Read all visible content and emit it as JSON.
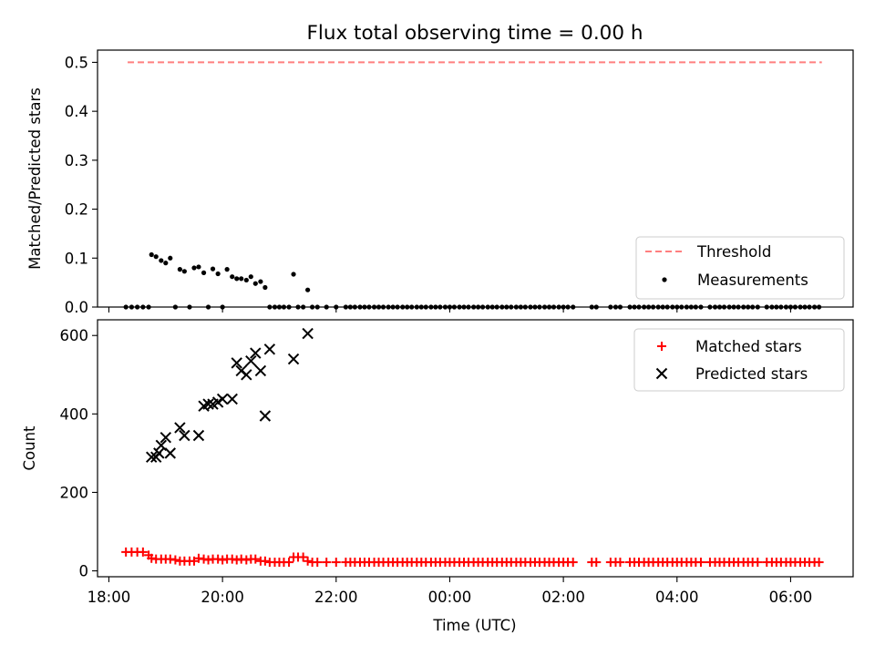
{
  "chart_data": [
    {
      "type": "scatter",
      "title": "Flux total observing time = 0.00 h",
      "xlabel": "",
      "ylabel": "Matched/Predicted stars",
      "xlim": [
        17.8,
        31.1
      ],
      "ylim": [
        0,
        0.525
      ],
      "yticks": [
        0.0,
        0.1,
        0.2,
        0.3,
        0.4,
        0.5
      ],
      "ytick_labels": [
        "0.0",
        "0.1",
        "0.2",
        "0.3",
        "0.4",
        "0.5"
      ],
      "legend_position": "lower-right",
      "series": [
        {
          "name": "Threshold",
          "style": "dashed-line",
          "color": "#ff7f7f",
          "x": [
            18.33,
            30.55
          ],
          "y": [
            0.5,
            0.5
          ]
        },
        {
          "name": "Measurements",
          "style": "dot",
          "color": "#000000",
          "x": [
            18.3,
            18.4,
            18.5,
            18.6,
            18.7,
            18.75,
            18.83,
            18.92,
            19.0,
            19.08,
            19.17,
            19.25,
            19.33,
            19.42,
            19.5,
            19.58,
            19.67,
            19.75,
            19.83,
            19.92,
            20.0,
            20.08,
            20.17,
            20.25,
            20.33,
            20.42,
            20.5,
            20.58,
            20.67,
            20.75,
            20.83,
            20.92,
            21.0,
            21.08,
            21.17,
            21.25,
            21.33,
            21.42,
            21.5,
            21.58,
            21.67,
            21.83,
            22.0,
            22.17,
            22.25,
            22.33,
            22.42,
            22.5,
            22.58,
            22.67,
            22.75,
            22.83,
            22.92,
            23.0,
            23.08,
            23.17,
            23.25,
            23.33,
            23.42,
            23.5,
            23.58,
            23.67,
            23.75,
            23.83,
            23.92,
            24.0,
            24.08,
            24.17,
            24.25,
            24.33,
            24.42,
            24.5,
            24.58,
            24.67,
            24.75,
            24.83,
            24.92,
            25.0,
            25.08,
            25.17,
            25.25,
            25.33,
            25.42,
            25.5,
            25.58,
            25.67,
            25.75,
            25.83,
            25.92,
            26.0,
            26.08,
            26.17,
            26.5,
            26.58,
            26.83,
            26.92,
            27.0,
            27.17,
            27.25,
            27.33,
            27.42,
            27.5,
            27.58,
            27.67,
            27.75,
            27.83,
            27.92,
            28.0,
            28.08,
            28.17,
            28.25,
            28.33,
            28.42,
            28.58,
            28.67,
            28.75,
            28.83,
            28.92,
            29.0,
            29.08,
            29.17,
            29.25,
            29.33,
            29.42,
            29.58,
            29.67,
            29.75,
            29.83,
            29.92,
            30.0,
            30.08,
            30.17,
            30.25,
            30.33,
            30.42,
            30.5
          ],
          "y": [
            0.0,
            0.0,
            0.0,
            0.0,
            0.0,
            0.107,
            0.103,
            0.095,
            0.09,
            0.1,
            0.0,
            0.077,
            0.073,
            0.0,
            0.08,
            0.082,
            0.07,
            0.0,
            0.078,
            0.068,
            0.0,
            0.077,
            0.062,
            0.058,
            0.058,
            0.055,
            0.062,
            0.048,
            0.052,
            0.04,
            0.0,
            0.0,
            0.0,
            0.0,
            0.0,
            0.067,
            0.0,
            0.0,
            0.035,
            0.0,
            0.0,
            0.0,
            0.0,
            0.0,
            0.0,
            0.0,
            0.0,
            0.0,
            0.0,
            0.0,
            0.0,
            0.0,
            0.0,
            0.0,
            0.0,
            0.0,
            0.0,
            0.0,
            0.0,
            0.0,
            0.0,
            0.0,
            0.0,
            0.0,
            0.0,
            0.0,
            0.0,
            0.0,
            0.0,
            0.0,
            0.0,
            0.0,
            0.0,
            0.0,
            0.0,
            0.0,
            0.0,
            0.0,
            0.0,
            0.0,
            0.0,
            0.0,
            0.0,
            0.0,
            0.0,
            0.0,
            0.0,
            0.0,
            0.0,
            0.0,
            0.0,
            0.0,
            0.0,
            0.0,
            0.0,
            0.0,
            0.0,
            0.0,
            0.0,
            0.0,
            0.0,
            0.0,
            0.0,
            0.0,
            0.0,
            0.0,
            0.0,
            0.0,
            0.0,
            0.0,
            0.0,
            0.0,
            0.0,
            0.0,
            0.0,
            0.0,
            0.0,
            0.0,
            0.0,
            0.0,
            0.0,
            0.0,
            0.0,
            0.0,
            0.0,
            0.0,
            0.0,
            0.0,
            0.0,
            0.0,
            0.0,
            0.0,
            0.0,
            0.0,
            0.0,
            0.0
          ]
        }
      ]
    },
    {
      "type": "scatter",
      "title": "",
      "xlabel": "Time (UTC)",
      "ylabel": "Count",
      "xlim": [
        17.8,
        31.1
      ],
      "ylim": [
        -15,
        640
      ],
      "yticks": [
        0,
        200,
        400,
        600
      ],
      "ytick_labels": [
        "0",
        "200",
        "400",
        "600"
      ],
      "xticks": [
        18,
        20,
        22,
        24,
        26,
        28,
        30
      ],
      "xtick_labels": [
        "18:00",
        "20:00",
        "22:00",
        "00:00",
        "02:00",
        "04:00",
        "06:00"
      ],
      "legend_position": "upper-right",
      "series": [
        {
          "name": "Matched stars",
          "marker": "+",
          "color": "#ff0000",
          "x": [
            18.3,
            18.4,
            18.5,
            18.6,
            18.7,
            18.75,
            18.83,
            18.92,
            19.0,
            19.08,
            19.17,
            19.25,
            19.33,
            19.42,
            19.5,
            19.58,
            19.67,
            19.75,
            19.83,
            19.92,
            20.0,
            20.08,
            20.17,
            20.25,
            20.33,
            20.42,
            20.5,
            20.58,
            20.67,
            20.75,
            20.83,
            20.92,
            21.0,
            21.08,
            21.17,
            21.25,
            21.33,
            21.42,
            21.5,
            21.58,
            21.67,
            21.83,
            22.0,
            22.17,
            22.25,
            22.33,
            22.42,
            22.5,
            22.58,
            22.67,
            22.75,
            22.83,
            22.92,
            23.0,
            23.08,
            23.17,
            23.25,
            23.33,
            23.42,
            23.5,
            23.58,
            23.67,
            23.75,
            23.83,
            23.92,
            24.0,
            24.08,
            24.17,
            24.25,
            24.33,
            24.42,
            24.5,
            24.58,
            24.67,
            24.75,
            24.83,
            24.92,
            25.0,
            25.08,
            25.17,
            25.25,
            25.33,
            25.42,
            25.5,
            25.58,
            25.67,
            25.75,
            25.83,
            25.92,
            26.0,
            26.08,
            26.17,
            26.5,
            26.58,
            26.83,
            26.92,
            27.0,
            27.17,
            27.25,
            27.33,
            27.42,
            27.5,
            27.58,
            27.67,
            27.75,
            27.83,
            27.92,
            28.0,
            28.08,
            28.17,
            28.25,
            28.33,
            28.42,
            28.58,
            28.67,
            28.75,
            28.83,
            28.92,
            29.0,
            29.08,
            29.17,
            29.25,
            29.33,
            29.42,
            29.58,
            29.67,
            29.75,
            29.83,
            29.92,
            30.0,
            30.08,
            30.17,
            30.25,
            30.33,
            30.42,
            30.5
          ],
          "y": [
            48,
            48,
            48,
            48,
            40,
            32,
            30,
            30,
            30,
            30,
            28,
            25,
            25,
            25,
            25,
            32,
            30,
            28,
            30,
            30,
            28,
            30,
            30,
            28,
            30,
            28,
            30,
            30,
            25,
            25,
            22,
            22,
            22,
            22,
            22,
            35,
            35,
            35,
            25,
            22,
            22,
            22,
            22,
            22,
            22,
            22,
            22,
            22,
            22,
            22,
            22,
            22,
            22,
            22,
            22,
            22,
            22,
            22,
            22,
            22,
            22,
            22,
            22,
            22,
            22,
            22,
            22,
            22,
            22,
            22,
            22,
            22,
            22,
            22,
            22,
            22,
            22,
            22,
            22,
            22,
            22,
            22,
            22,
            22,
            22,
            22,
            22,
            22,
            22,
            22,
            22,
            22,
            22,
            22,
            22,
            22,
            22,
            22,
            22,
            22,
            22,
            22,
            22,
            22,
            22,
            22,
            22,
            22,
            22,
            22,
            22,
            22,
            22,
            22,
            22,
            22,
            22,
            22,
            22,
            22,
            22,
            22,
            22,
            22,
            22,
            22,
            22,
            22,
            22,
            22,
            22,
            22,
            22,
            22,
            22,
            22
          ]
        },
        {
          "name": "Predicted stars",
          "marker": "x",
          "color": "#000000",
          "x": [
            18.75,
            18.83,
            18.88,
            18.92,
            19.0,
            19.08,
            19.25,
            19.33,
            19.58,
            19.67,
            19.75,
            19.83,
            19.92,
            20.0,
            20.17,
            20.25,
            20.33,
            20.42,
            20.5,
            20.58,
            20.67,
            20.75,
            20.83,
            21.25,
            21.5
          ],
          "y": [
            290,
            290,
            300,
            320,
            340,
            300,
            365,
            345,
            345,
            420,
            425,
            425,
            430,
            438,
            438,
            530,
            510,
            500,
            535,
            555,
            510,
            395,
            565,
            540,
            605
          ]
        }
      ]
    }
  ]
}
